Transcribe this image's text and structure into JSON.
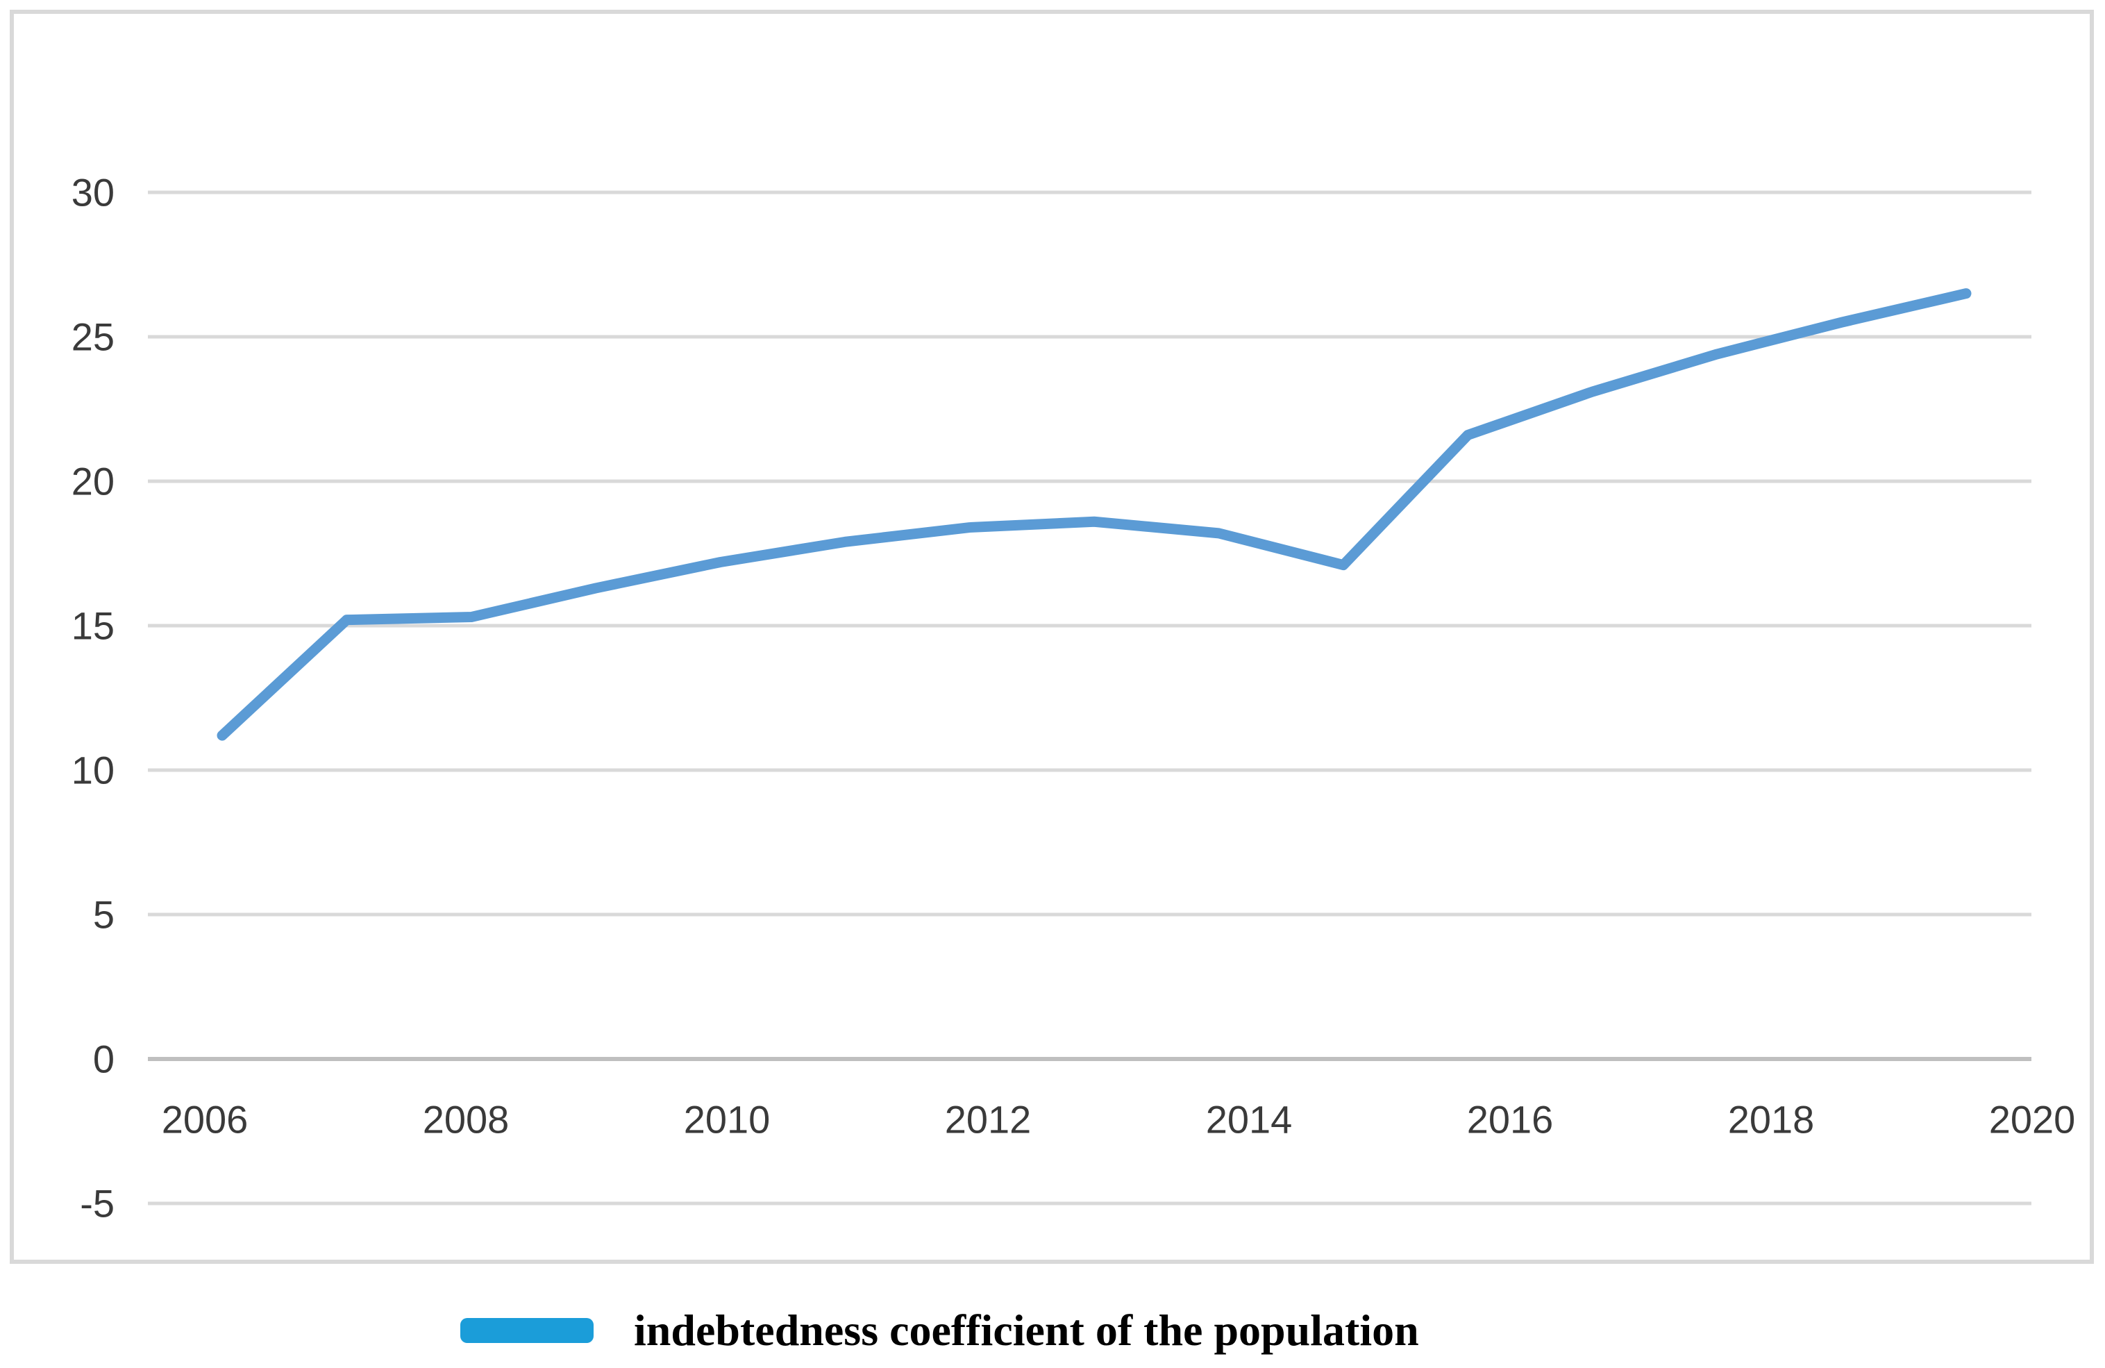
{
  "page": {
    "background": "#ffffff"
  },
  "chart_data": {
    "type": "line",
    "x": [
      2006,
      2007,
      2008,
      2009,
      2010,
      2011,
      2012,
      2013,
      2014,
      2015,
      2016,
      2017,
      2018,
      2019,
      2020
    ],
    "series": [
      {
        "name": "indebtedness coefficient of the population",
        "values": [
          11.2,
          15.2,
          15.3,
          16.3,
          17.2,
          17.9,
          18.4,
          18.6,
          18.2,
          17.1,
          21.6,
          23.1,
          24.4,
          25.5,
          26.5
        ]
      }
    ],
    "x_tick_labels": [
      "2006",
      "2008",
      "2010",
      "2012",
      "2014",
      "2016",
      "2018",
      "2020"
    ],
    "y_ticks": [
      30,
      25,
      20,
      15,
      10,
      5,
      0,
      -5
    ],
    "ylim": [
      -5,
      30
    ],
    "grid": "horizontal",
    "legend_position": "bottom-outside",
    "legend_label": "indebtedness coefficient of the population",
    "colors": {
      "line": "#5B9BD5",
      "legend_marker": "#1B9DD9",
      "gridline": "#D9D9D9",
      "axis_line": "#BFBFBF",
      "tick_text": "#3A3A3A",
      "border": "#D9D9D9"
    }
  }
}
